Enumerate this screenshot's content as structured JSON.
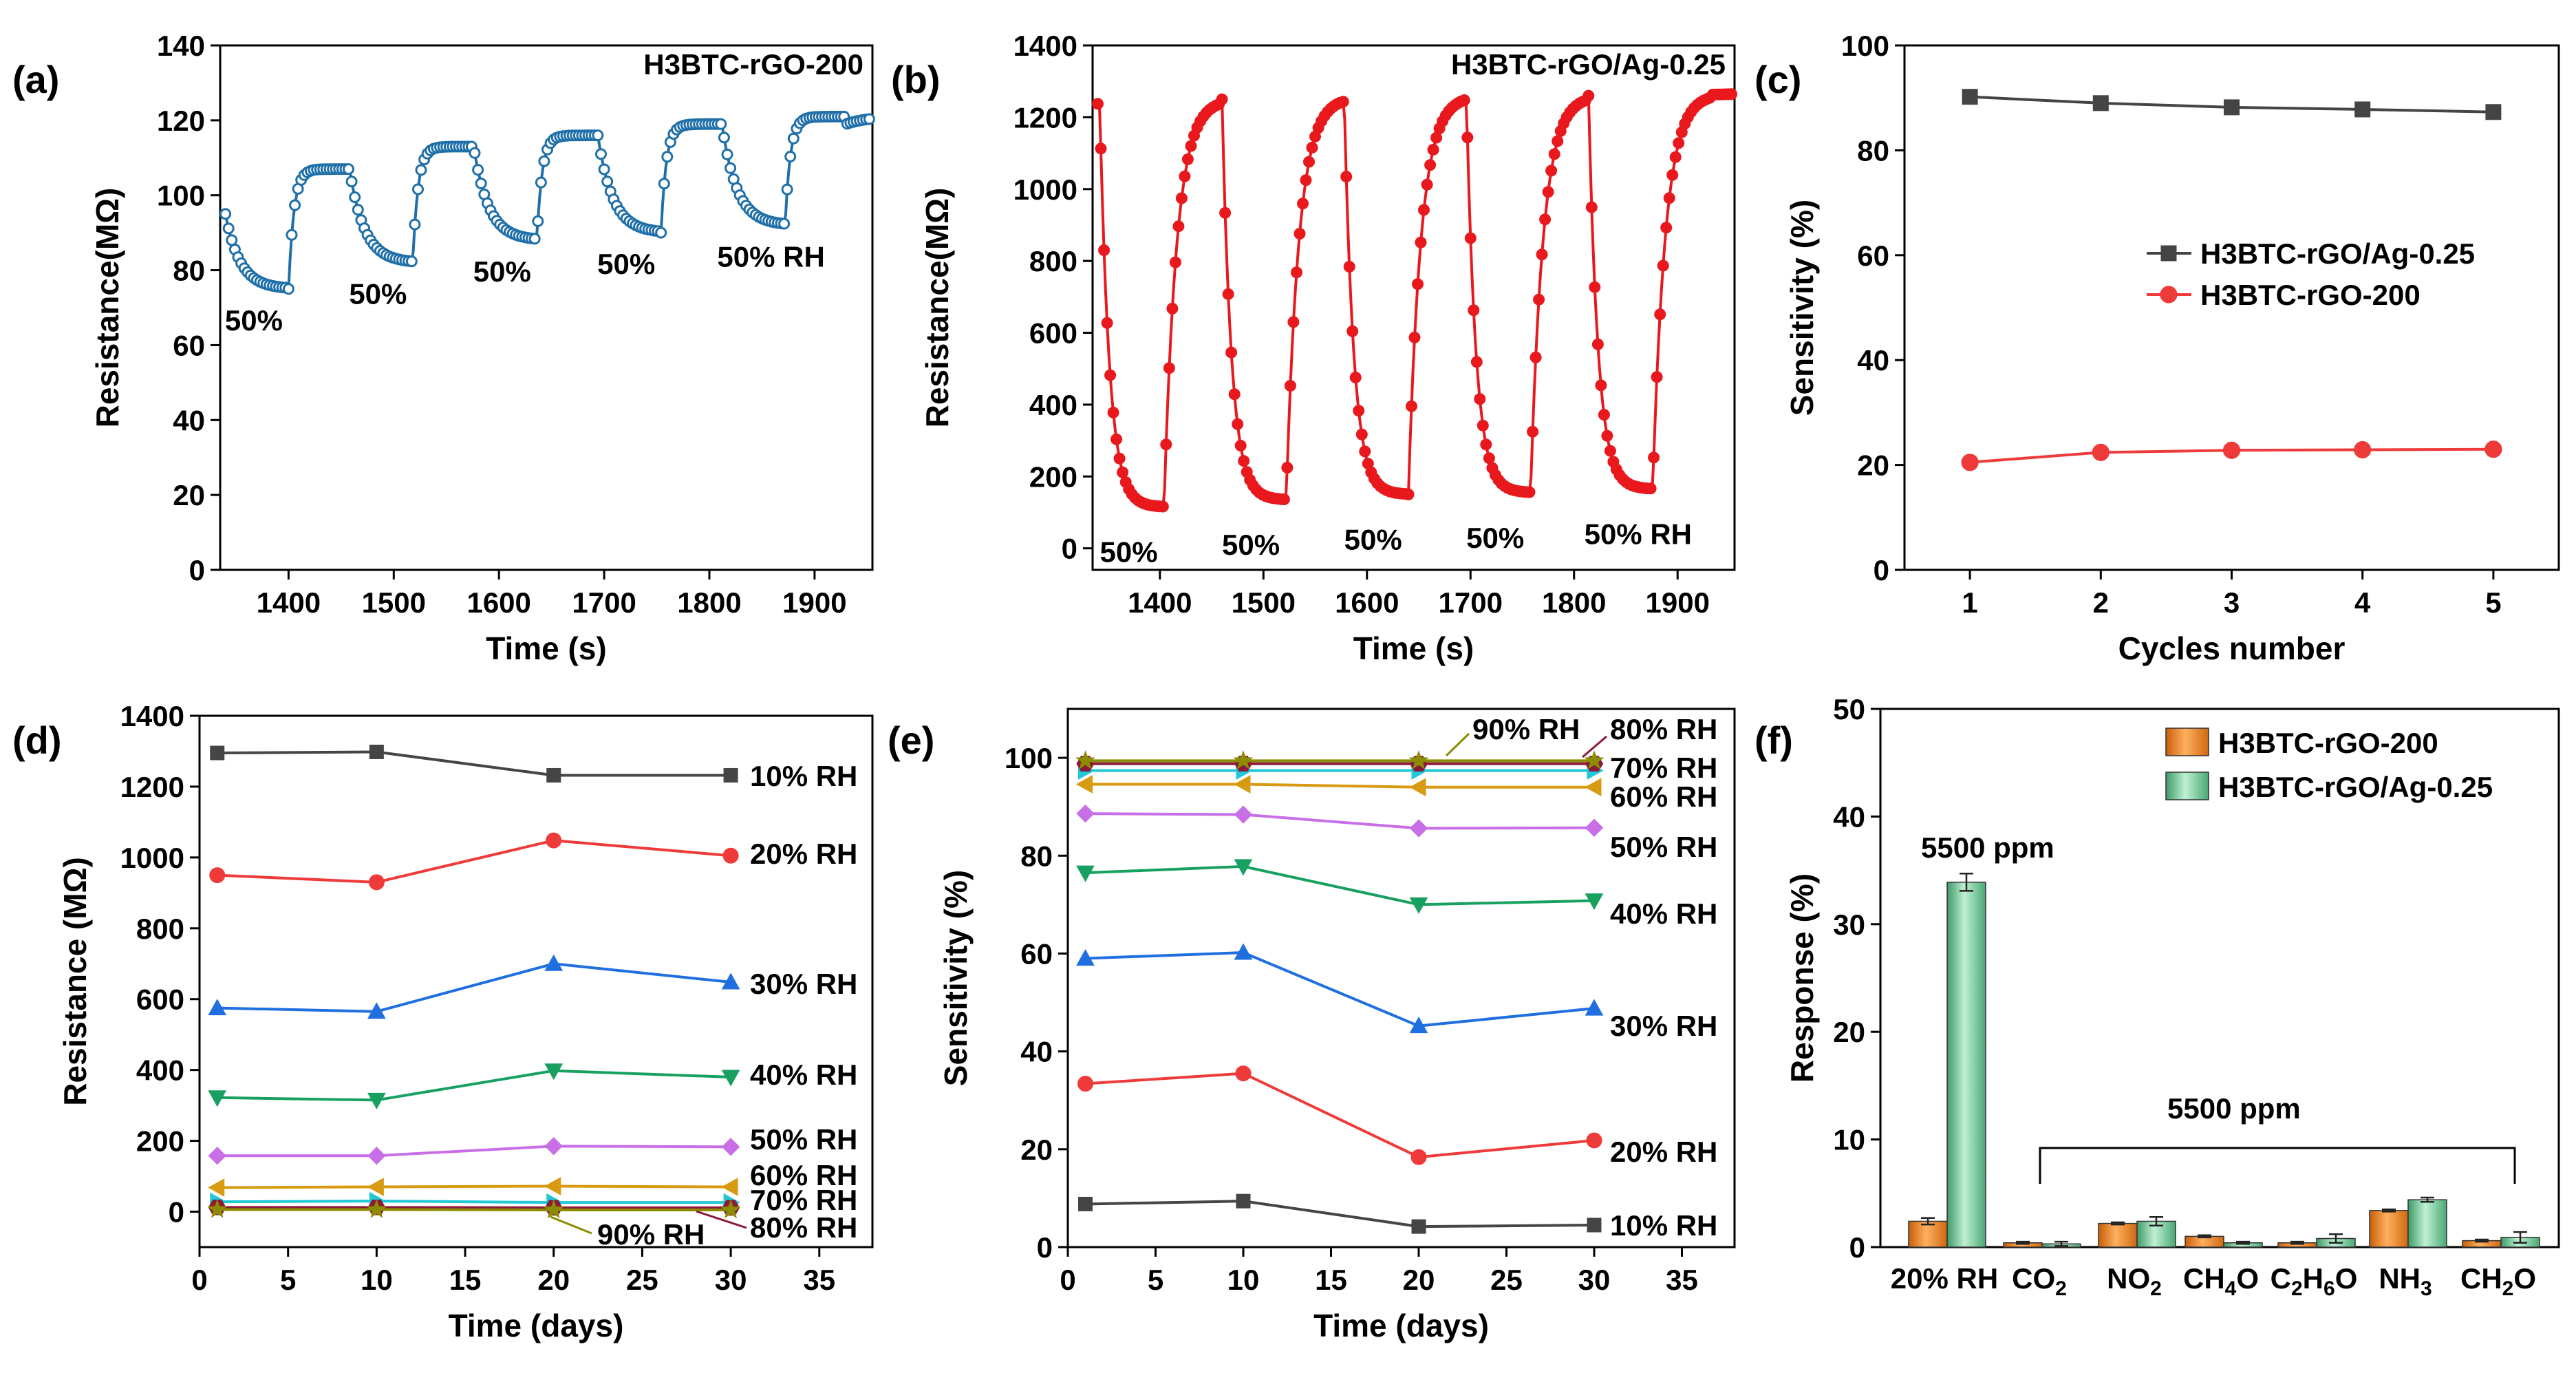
{
  "chart_data": [
    {
      "id": "a",
      "type": "line",
      "panel_label": "(a)",
      "title": "H3BTC-rGO-200",
      "xlabel": "Time (s)",
      "ylabel": "Resistance(MΩ)",
      "xlim": [
        1335,
        1955
      ],
      "ylim": [
        0,
        140
      ],
      "xticks": [
        1400,
        1500,
        1600,
        1700,
        1800,
        1900
      ],
      "yticks": [
        0,
        20,
        40,
        60,
        80,
        100,
        120,
        140
      ],
      "color": "#1f6fa8",
      "cycle": {
        "start": 1340,
        "period": 118,
        "low_time": 60
      },
      "levels_low": [
        75,
        82,
        88,
        90,
        92
      ],
      "levels_high": [
        107,
        113,
        116,
        119,
        121
      ],
      "start_value": 95,
      "annotations": [
        "50%",
        "50%",
        "50%",
        "50%",
        "50% RH"
      ]
    },
    {
      "id": "b",
      "type": "line",
      "panel_label": "(b)",
      "title": "H3BTC-rGO/Ag-0.25",
      "xlabel": "Time (s)",
      "ylabel": "Resistance(MΩ)",
      "xlim": [
        1335,
        1955
      ],
      "ylim": [
        -60,
        1400
      ],
      "xticks": [
        1400,
        1500,
        1600,
        1700,
        1800,
        1900
      ],
      "yticks": [
        0,
        200,
        400,
        600,
        800,
        1000,
        1200,
        1400
      ],
      "color": "#e8181c",
      "cycle": {
        "start": 1342,
        "period": 118,
        "low_time": 62
      },
      "levels_low": [
        115,
        135,
        150,
        155,
        165
      ],
      "levels_high": [
        1250,
        1255,
        1260,
        1260,
        1265
      ],
      "start_value": 1230,
      "annotations": [
        "50%",
        "50%",
        "50%",
        "50%",
        "50% RH"
      ]
    },
    {
      "id": "c",
      "type": "line",
      "panel_label": "(c)",
      "xlabel": "Cycles number",
      "ylabel": "Sensitivity (%)",
      "xlim": [
        0.5,
        5.5
      ],
      "ylim": [
        0,
        100
      ],
      "xticks": [
        1,
        2,
        3,
        4,
        5
      ],
      "yticks": [
        0,
        20,
        40,
        60,
        80,
        100
      ],
      "legend_position": "center-right",
      "series": [
        {
          "name": "H3BTC-rGO/Ag-0.25",
          "color": "#444444",
          "marker": "square",
          "x": [
            1,
            2,
            3,
            4,
            5
          ],
          "values": [
            90.2,
            89.0,
            88.2,
            87.8,
            87.3
          ]
        },
        {
          "name": "H3BTC-rGO-200",
          "color": "#ef3a3a",
          "marker": "circle",
          "x": [
            1,
            2,
            3,
            4,
            5
          ],
          "values": [
            20.5,
            22.4,
            22.8,
            22.9,
            23.0
          ]
        }
      ]
    },
    {
      "id": "d",
      "type": "line",
      "panel_label": "(d)",
      "xlabel": "Time (days)",
      "ylabel": "Resistance (MΩ)",
      "xlim": [
        0,
        38
      ],
      "ylim": [
        -100,
        1400
      ],
      "xticks": [
        0,
        5,
        10,
        15,
        20,
        25,
        30,
        35
      ],
      "yticks": [
        0,
        200,
        400,
        600,
        800,
        1000,
        1200,
        1400
      ],
      "series": [
        {
          "name": "10% RH",
          "color": "#454545",
          "marker": "square",
          "x": [
            1,
            10,
            20,
            30
          ],
          "values": [
            1295,
            1298,
            1232,
            1232
          ]
        },
        {
          "name": "20% RH",
          "color": "#ef3a3a",
          "marker": "circle",
          "x": [
            1,
            10,
            20,
            30
          ],
          "values": [
            950,
            930,
            1048,
            1005
          ]
        },
        {
          "name": "30% RH",
          "color": "#1f6fe0",
          "marker": "triangle-up",
          "x": [
            1,
            10,
            20,
            30
          ],
          "values": [
            575,
            565,
            700,
            648
          ]
        },
        {
          "name": "40% RH",
          "color": "#18a060",
          "marker": "triangle-down",
          "x": [
            1,
            10,
            20,
            30
          ],
          "values": [
            322,
            315,
            398,
            380
          ]
        },
        {
          "name": "50% RH",
          "color": "#c86fe8",
          "marker": "diamond",
          "x": [
            1,
            10,
            20,
            30
          ],
          "values": [
            158,
            158,
            185,
            183
          ]
        },
        {
          "name": "60% RH",
          "color": "#d89a10",
          "marker": "triangle-left",
          "x": [
            1,
            10,
            20,
            30
          ],
          "values": [
            68,
            70,
            72,
            70
          ]
        },
        {
          "name": "70% RH",
          "color": "#20c8d8",
          "marker": "triangle-right",
          "x": [
            1,
            10,
            20,
            30
          ],
          "values": [
            28,
            30,
            26,
            26
          ]
        },
        {
          "name": "80% RH",
          "color": "#8b1a3a",
          "marker": "hexagon",
          "x": [
            1,
            10,
            20,
            30
          ],
          "values": [
            12,
            12,
            11,
            11
          ]
        },
        {
          "name": "90% RH",
          "color": "#8c8c00",
          "marker": "star",
          "x": [
            1,
            10,
            20,
            30
          ],
          "values": [
            6,
            6,
            5,
            5
          ]
        }
      ],
      "labels": [
        "10% RH",
        "20% RH",
        "30% RH",
        "40% RH",
        "50% RH",
        "60% RH",
        "70% RH",
        "80% RH",
        "90% RH"
      ]
    },
    {
      "id": "e",
      "type": "line",
      "panel_label": "(e)",
      "xlabel": "Time (days)",
      "ylabel": "Sensitivity (%)",
      "xlim": [
        0,
        38
      ],
      "ylim": [
        0,
        110
      ],
      "xticks": [
        0,
        5,
        10,
        15,
        20,
        25,
        30,
        35
      ],
      "yticks": [
        0,
        20,
        40,
        60,
        80,
        100
      ],
      "series": [
        {
          "name": "10% RH",
          "color": "#454545",
          "marker": "square",
          "x": [
            1,
            10,
            20,
            30
          ],
          "values": [
            8.8,
            9.4,
            4.2,
            4.5
          ]
        },
        {
          "name": "20% RH",
          "color": "#ef3a3a",
          "marker": "circle",
          "x": [
            1,
            10,
            20,
            30
          ],
          "values": [
            33.4,
            35.5,
            18.4,
            21.8
          ]
        },
        {
          "name": "30% RH",
          "color": "#1f6fe0",
          "marker": "triangle-up",
          "x": [
            1,
            10,
            20,
            30
          ],
          "values": [
            59.0,
            60.2,
            45.2,
            48.8
          ]
        },
        {
          "name": "40% RH",
          "color": "#18a060",
          "marker": "triangle-down",
          "x": [
            1,
            10,
            20,
            30
          ],
          "values": [
            76.5,
            77.8,
            70.0,
            70.8
          ]
        },
        {
          "name": "50% RH",
          "color": "#c86fe8",
          "marker": "diamond",
          "x": [
            1,
            10,
            20,
            30
          ],
          "values": [
            88.6,
            88.4,
            85.6,
            85.7
          ]
        },
        {
          "name": "60% RH",
          "color": "#d89a10",
          "marker": "triangle-left",
          "x": [
            1,
            10,
            20,
            30
          ],
          "values": [
            94.6,
            94.6,
            94.0,
            94.0
          ]
        },
        {
          "name": "70% RH",
          "color": "#20c8d8",
          "marker": "triangle-right",
          "x": [
            1,
            10,
            20,
            30
          ],
          "values": [
            97.4,
            97.4,
            97.4,
            97.4
          ]
        },
        {
          "name": "80% RH",
          "color": "#8b1a3a",
          "marker": "hexagon",
          "x": [
            1,
            10,
            20,
            30
          ],
          "values": [
            98.8,
            98.8,
            98.8,
            98.8
          ]
        },
        {
          "name": "90% RH",
          "color": "#8c8c00",
          "marker": "star",
          "x": [
            1,
            10,
            20,
            30
          ],
          "values": [
            99.4,
            99.4,
            99.4,
            99.4
          ]
        }
      ],
      "labels": [
        "90% RH",
        "80% RH",
        "70% RH",
        "60% RH",
        "50% RH",
        "40% RH",
        "30% RH",
        "20% RH",
        "10% RH"
      ]
    },
    {
      "id": "f",
      "type": "bar",
      "panel_label": "(f)",
      "xlabel": "",
      "ylabel": "Response (%)",
      "ylim": [
        0,
        50
      ],
      "yticks": [
        0,
        10,
        20,
        30,
        40,
        50
      ],
      "categories": [
        "20% RH",
        "CO2",
        "NO2",
        "CH4O",
        "C2H6O",
        "NH3",
        "CH2O"
      ],
      "category_labels": [
        {
          "base": "20% RH",
          "sub": "",
          "tail": ""
        },
        {
          "base": "CO",
          "sub": "2",
          "tail": ""
        },
        {
          "base": "NO",
          "sub": "2",
          "tail": ""
        },
        {
          "base": "CH",
          "sub": "4",
          "tail": "O"
        },
        {
          "base": "C",
          "sub": "2",
          "tail": "H",
          "sub2": "6",
          "tail2": "O"
        },
        {
          "base": "NH",
          "sub": "3",
          "tail": ""
        },
        {
          "base": "CH",
          "sub": "2",
          "tail": "O"
        }
      ],
      "series": [
        {
          "name": "H3BTC-rGO-200",
          "color": "#f08a24",
          "values": [
            2.4,
            0.4,
            2.2,
            1.0,
            0.4,
            3.4,
            0.6
          ],
          "errors": [
            0.3,
            0.1,
            0.1,
            0.1,
            0.1,
            0.1,
            0.1
          ]
        },
        {
          "name": "H3BTC-rGO/Ag-0.25",
          "color": "#6cc494",
          "values": [
            33.9,
            0.3,
            2.4,
            0.4,
            0.8,
            4.4,
            0.9
          ],
          "errors": [
            0.8,
            0.2,
            0.4,
            0.1,
            0.4,
            0.2,
            0.5
          ]
        }
      ],
      "annotations": [
        "5500 ppm",
        "5500 ppm"
      ],
      "legend_position": "top-right"
    }
  ]
}
